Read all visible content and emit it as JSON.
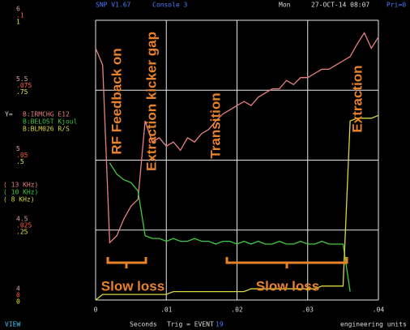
{
  "chart_data": {
    "type": "line",
    "header": {
      "program": "SNP V1.67",
      "console": "Console  3",
      "day": "Mon",
      "datetime": "27-OCT-14 08:07",
      "priority": "Pri=0"
    },
    "footer": {
      "view": "VIEW",
      "xlabel": "Seconds",
      "trigger": "Trig = EVENT",
      "event": "19",
      "units": "engineering units"
    },
    "legend_prefix": "Y=",
    "x": [
      0,
      0.001,
      0.002,
      0.003,
      0.004,
      0.005,
      0.006,
      0.007,
      0.008,
      0.009,
      0.01,
      0.011,
      0.012,
      0.013,
      0.014,
      0.015,
      0.016,
      0.017,
      0.018,
      0.019,
      0.02,
      0.021,
      0.022,
      0.023,
      0.024,
      0.025,
      0.026,
      0.027,
      0.028,
      0.029,
      0.03,
      0.031,
      0.032,
      0.033,
      0.034,
      0.035,
      0.036,
      0.037,
      0.038,
      0.039,
      0.04
    ],
    "xlim": [
      0,
      0.04
    ],
    "xticks": [
      0,
      {
        "value": 0.01,
        "label": ".01"
      },
      {
        "value": 0.02,
        "label": ".02"
      },
      {
        "value": 0.03,
        "label": ".03"
      },
      {
        "value": 0.04,
        "label": ".04"
      }
    ],
    "ylim": [
      4,
      6
    ],
    "yticks": [
      4,
      {
        "value": 4.5,
        "label": "4.5"
      },
      5,
      {
        "value": 5.5,
        "label": "5.5"
      },
      6
    ],
    "y2lim": [
      0,
      0.1
    ],
    "y2ticks": [
      0,
      {
        "value": 0.025,
        "label": ".025"
      },
      {
        "value": 0.05,
        "label": ".05"
      },
      {
        "value": 0.075,
        "label": ".075"
      },
      {
        "value": 0.1,
        "label": ".1"
      }
    ],
    "y3lim": [
      0,
      1
    ],
    "y3ticks": [
      0,
      {
        "value": 0.25,
        "label": ".25"
      },
      {
        "value": 0.5,
        "label": ".5"
      },
      {
        "value": 0.75,
        "label": ".75"
      },
      1
    ],
    "grid": true,
    "series": [
      {
        "name": "B:IRMCHG E12",
        "frequency_label": "( 13  KHz)",
        "color": "#e88080",
        "axis": "y",
        "values": [
          5.8,
          5.68,
          4.41,
          4.46,
          4.58,
          4.67,
          4.72,
          5.28,
          5.13,
          5.16,
          5.1,
          5.13,
          5.07,
          5.16,
          5.13,
          5.19,
          5.22,
          5.28,
          5.33,
          5.36,
          5.39,
          5.42,
          5.39,
          5.45,
          5.48,
          5.51,
          5.51,
          5.57,
          5.54,
          5.59,
          5.59,
          5.62,
          5.65,
          5.65,
          5.68,
          5.71,
          5.74,
          5.83,
          5.91,
          5.8,
          5.88
        ]
      },
      {
        "name": "B:BELOST Kjoul",
        "frequency_label": "( 10  KHz)",
        "color": "#40c840",
        "axis": "y2",
        "values": [
          null,
          null,
          0.049,
          0.045,
          0.043,
          0.042,
          0.039,
          0.023,
          0.022,
          0.022,
          0.021,
          0.022,
          0.021,
          0.021,
          0.022,
          0.021,
          0.021,
          0.02,
          0.021,
          0.021,
          0.02,
          0.021,
          0.02,
          0.021,
          0.02,
          0.02,
          0.021,
          0.02,
          0.02,
          0.021,
          0.02,
          0.02,
          0.021,
          0.02,
          0.02,
          0.02,
          0.003,
          null,
          null,
          null,
          null
        ]
      },
      {
        "name": "B:BLM026 R/S",
        "frequency_label": "( 8   KHz)",
        "color": "#d8d840",
        "axis": "y3",
        "values": [
          0,
          0.02,
          0.02,
          0.02,
          0.02,
          0.02,
          0.02,
          0.02,
          0.02,
          0.02,
          0.02,
          0.03,
          0.03,
          0.03,
          0.03,
          0.03,
          0.03,
          0.03,
          0.03,
          0.03,
          0.03,
          0.03,
          0.04,
          0.04,
          0.04,
          0.04,
          0.04,
          0.04,
          0.04,
          0.04,
          0.04,
          0.04,
          0.05,
          0.05,
          0.05,
          0.05,
          0.64,
          0.65,
          0.65,
          0.65,
          0.66
        ]
      }
    ],
    "axis_colors": {
      "y": "#e0a0a0",
      "y2": "#ff5a3a",
      "y3": "#e8e840"
    },
    "annotations": {
      "rf_feedback": "RF Feedback on",
      "kicker_gap": "Extraction kicker gap",
      "transition": "Transition",
      "extraction": "Extraction",
      "slow_loss_1": "Slow loss",
      "slow_loss_2": "Slow loss"
    }
  }
}
